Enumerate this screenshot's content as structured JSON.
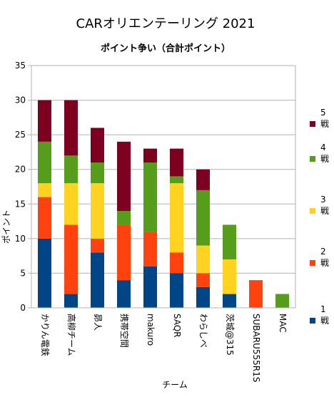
{
  "chart_data": {
    "type": "bar",
    "stacked": true,
    "title": "CARオリエンテーリング 2021",
    "subtitle": "ポイント争い（合計ポイント）",
    "xlabel": "チーム",
    "ylabel": "ポイント",
    "ylim": [
      0,
      35
    ],
    "yticks": [
      0,
      5,
      10,
      15,
      20,
      25,
      30,
      35
    ],
    "grid": true,
    "legend_position": "right",
    "categories": [
      "かりん電鉄",
      "高柳チーム",
      "昴人",
      "携帯空間",
      "makuro",
      "SAQR",
      "わらしべ",
      "茨城@315",
      "SUBARU555R1S",
      "MAC"
    ],
    "series": [
      {
        "name": "1戦",
        "legend_lines": [
          "1",
          "戦"
        ],
        "color": "#004586",
        "values": [
          10,
          2,
          8,
          4,
          6,
          5,
          3,
          2,
          0,
          0
        ]
      },
      {
        "name": "2戦",
        "legend_lines": [
          "2",
          "戦"
        ],
        "color": "#ff420e",
        "values": [
          6,
          10,
          2,
          8,
          5,
          3,
          2,
          0,
          4,
          0
        ]
      },
      {
        "name": "3戦",
        "legend_lines": [
          "3",
          "戦"
        ],
        "color": "#ffd320",
        "values": [
          2,
          6,
          8,
          0,
          0,
          10,
          4,
          5,
          0,
          0
        ]
      },
      {
        "name": "4戦",
        "legend_lines": [
          "4",
          "戦"
        ],
        "color": "#579d1c",
        "values": [
          6,
          4,
          3,
          2,
          10,
          1,
          8,
          5,
          0,
          2
        ]
      },
      {
        "name": "5戦",
        "legend_lines": [
          "5",
          "戦"
        ],
        "color": "#7e0021",
        "values": [
          6,
          8,
          5,
          10,
          2,
          4,
          3,
          0,
          0,
          0
        ]
      }
    ]
  }
}
